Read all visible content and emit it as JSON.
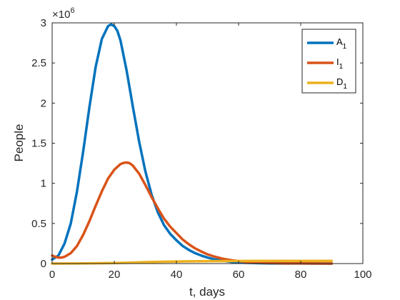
{
  "chart_data": {
    "type": "line",
    "xlabel": "t, days",
    "ylabel": "People",
    "exponent_label": {
      "base": "×10",
      "power": "6"
    },
    "xlim": [
      0,
      100
    ],
    "ylim": [
      0,
      3
    ],
    "xticks": [
      0,
      20,
      40,
      60,
      80,
      100
    ],
    "yticks": [
      0,
      0.5,
      1,
      1.5,
      2,
      2.5,
      3
    ],
    "ytick_labels": [
      "0",
      "0.5",
      "1",
      "1.5",
      "2",
      "2.5",
      "3"
    ],
    "y_scale_note": "values in millions (×10^6)",
    "legend_position": "top-right",
    "grid": false,
    "series": [
      {
        "name": "A",
        "subscript": "1",
        "color": "#0072BD",
        "x": [
          0,
          2,
          4,
          6,
          8,
          10,
          12,
          14,
          16,
          18,
          19,
          20,
          21,
          22,
          24,
          26,
          28,
          30,
          32,
          34,
          36,
          38,
          40,
          42,
          44,
          46,
          48,
          50,
          52,
          55,
          58,
          62,
          66,
          70,
          75,
          80,
          85,
          90
        ],
        "y": [
          0.05,
          0.1,
          0.25,
          0.5,
          0.9,
          1.4,
          1.95,
          2.45,
          2.8,
          2.96,
          2.98,
          2.96,
          2.9,
          2.78,
          2.4,
          1.95,
          1.52,
          1.15,
          0.86,
          0.64,
          0.48,
          0.37,
          0.29,
          0.22,
          0.17,
          0.13,
          0.1,
          0.075,
          0.055,
          0.035,
          0.02,
          0.01,
          0.005,
          0.003,
          0.001,
          0.0005,
          0.0002,
          0.0001
        ]
      },
      {
        "name": "I",
        "subscript": "1",
        "color": "#D95319",
        "x": [
          0,
          1,
          2,
          3,
          4,
          6,
          8,
          10,
          12,
          14,
          16,
          18,
          20,
          22,
          23,
          24,
          25,
          26,
          28,
          30,
          32,
          34,
          36,
          38,
          40,
          42,
          44,
          46,
          48,
          50,
          52,
          55,
          58,
          62,
          66,
          70,
          75,
          80,
          85,
          90
        ],
        "y": [
          0.1,
          0.085,
          0.075,
          0.075,
          0.085,
          0.13,
          0.22,
          0.36,
          0.53,
          0.72,
          0.9,
          1.06,
          1.17,
          1.24,
          1.255,
          1.26,
          1.25,
          1.22,
          1.12,
          0.98,
          0.83,
          0.69,
          0.56,
          0.46,
          0.38,
          0.3,
          0.24,
          0.19,
          0.15,
          0.115,
          0.09,
          0.06,
          0.04,
          0.022,
          0.012,
          0.007,
          0.003,
          0.0015,
          0.0007,
          0.0003
        ]
      },
      {
        "name": "D",
        "subscript": "1",
        "color": "#EDB120",
        "x": [
          0,
          10,
          20,
          25,
          30,
          35,
          40,
          50,
          60,
          70,
          80,
          90
        ],
        "y": [
          0,
          0.002,
          0.007,
          0.012,
          0.018,
          0.022,
          0.026,
          0.03,
          0.032,
          0.033,
          0.034,
          0.034
        ]
      }
    ]
  }
}
